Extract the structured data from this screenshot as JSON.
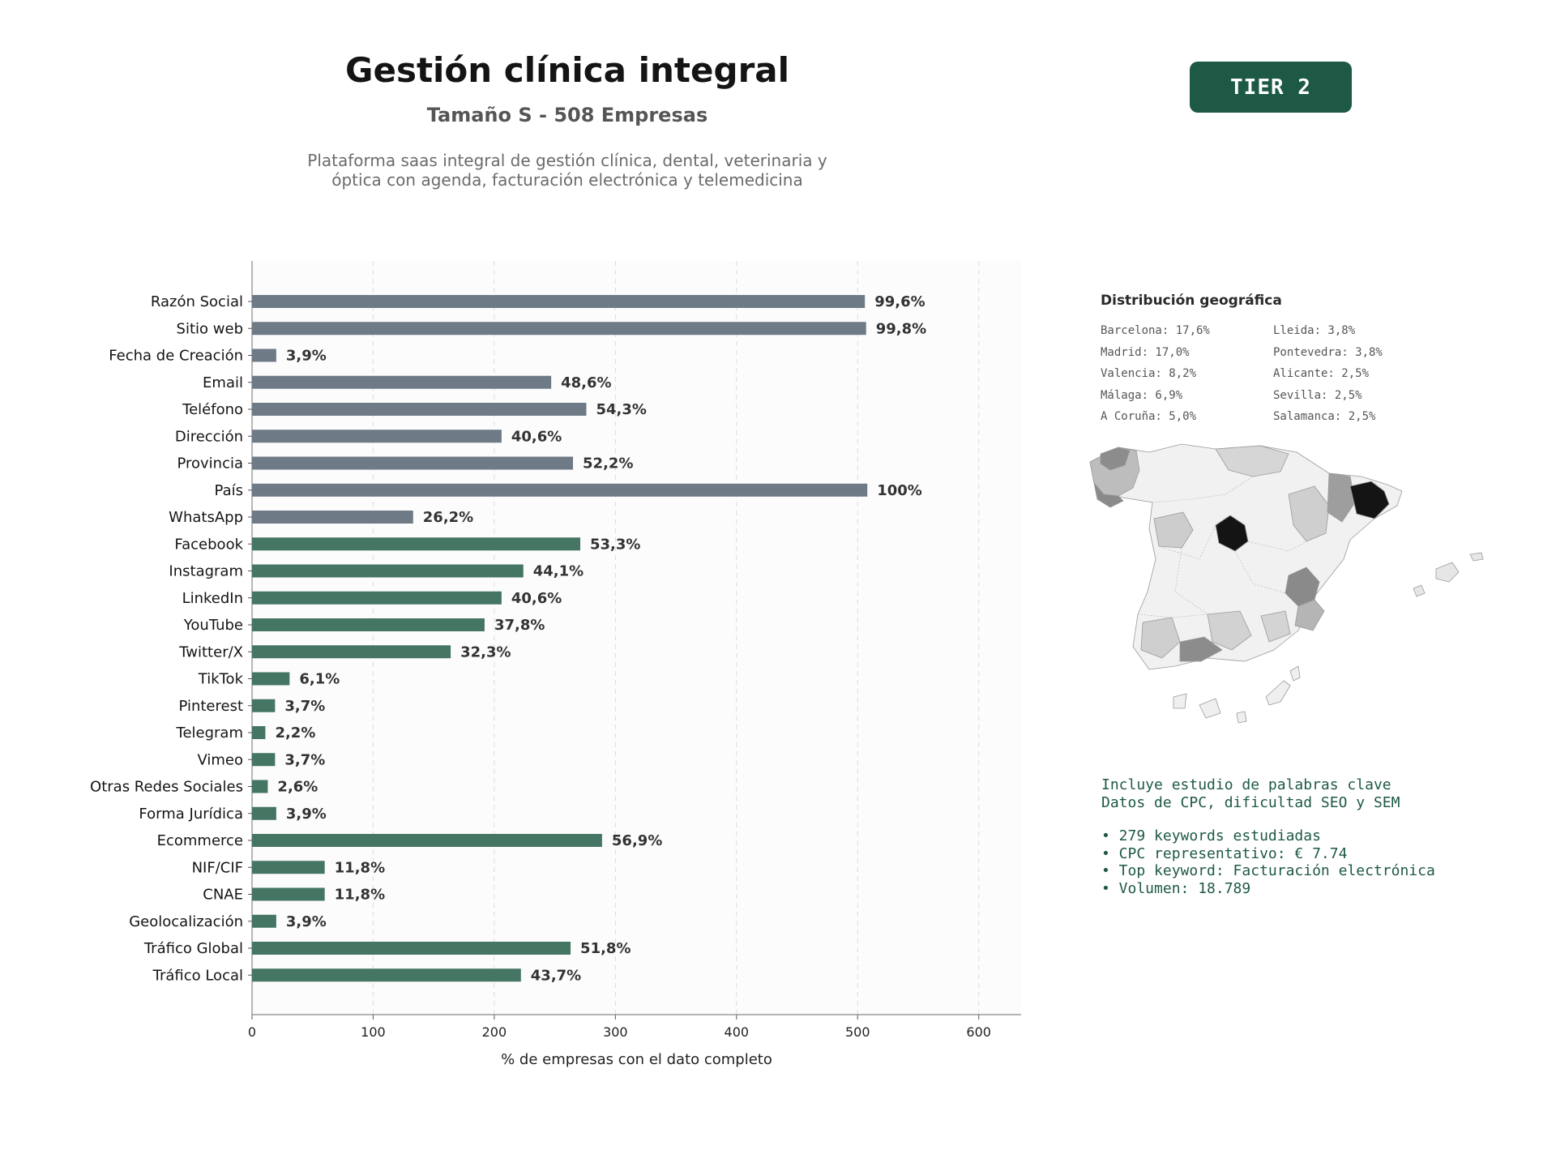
{
  "header": {
    "title": "Gestión clínica integral",
    "subtitle": "Tamaño S - 508 Empresas",
    "description_line1": "Plataforma saas integral de gestión clínica, dental, veterinaria y",
    "description_line2": "óptica con agenda, facturación electrónica y telemedicina",
    "badge": "TIER 2"
  },
  "colors": {
    "gray_bar": "#6e7a86",
    "green_bar": "#457563",
    "badge": "#1e5945",
    "plot_bg": "#fcfcfc"
  },
  "geo": {
    "title": "Distribución geográfica",
    "items": [
      "Barcelona: 17,6%",
      "Lleida: 3,8%",
      "Madrid: 17,0%",
      "Pontevedra: 3,8%",
      "Valencia: 8,2%",
      "Alicante: 2,5%",
      "Málaga: 6,9%",
      "Sevilla: 2,5%",
      "A Coruña: 5,0%",
      "Salamanca: 2,5%"
    ]
  },
  "keywords": {
    "line1": "Incluye estudio de palabras clave",
    "line2": "Datos de CPC, dificultad SEO y SEM",
    "bullets": [
      "• 279 keywords estudiadas",
      "• CPC representativo: € 7.74",
      "• Top keyword: Facturación electrónica",
      "• Volumen: 18.789"
    ]
  },
  "chart_data": {
    "type": "bar",
    "orientation": "horizontal",
    "xlabel": "% de empresas con el dato completo",
    "xlim": [
      0,
      635
    ],
    "xticks": [
      0,
      100,
      200,
      300,
      400,
      500,
      600
    ],
    "grid": "vertical dashed",
    "categories": [
      "Razón Social",
      "Sitio web",
      "Fecha de Creación",
      "Email",
      "Teléfono",
      "Dirección",
      "Provincia",
      "País",
      "WhatsApp",
      "Facebook",
      "Instagram",
      "LinkedIn",
      "YouTube",
      "Twitter/X",
      "TikTok",
      "Pinterest",
      "Telegram",
      "Vimeo",
      "Otras Redes Sociales",
      "Forma Jurídica",
      "Ecommerce",
      "NIF/CIF",
      "CNAE",
      "Geolocalización",
      "Tráfico Global",
      "Tráfico Local"
    ],
    "values": [
      506,
      507,
      20,
      247,
      276,
      206,
      265,
      508,
      133,
      271,
      224,
      206,
      192,
      164,
      31,
      19,
      11,
      19,
      13,
      20,
      289,
      60,
      60,
      20,
      263,
      222
    ],
    "labels": [
      "99,6%",
      "99,8%",
      "3,9%",
      "48,6%",
      "54,3%",
      "40,6%",
      "52,2%",
      "100%",
      "26,2%",
      "53,3%",
      "44,1%",
      "40,6%",
      "37,8%",
      "32,3%",
      "6,1%",
      "3,7%",
      "2,2%",
      "3,7%",
      "2,6%",
      "3,9%",
      "56,9%",
      "11,8%",
      "11,8%",
      "3,9%",
      "51,8%",
      "43,7%"
    ],
    "groups": [
      "gray",
      "gray",
      "gray",
      "gray",
      "gray",
      "gray",
      "gray",
      "gray",
      "gray",
      "green",
      "green",
      "green",
      "green",
      "green",
      "green",
      "green",
      "green",
      "green",
      "green",
      "green",
      "green",
      "green",
      "green",
      "green",
      "green",
      "green"
    ]
  }
}
